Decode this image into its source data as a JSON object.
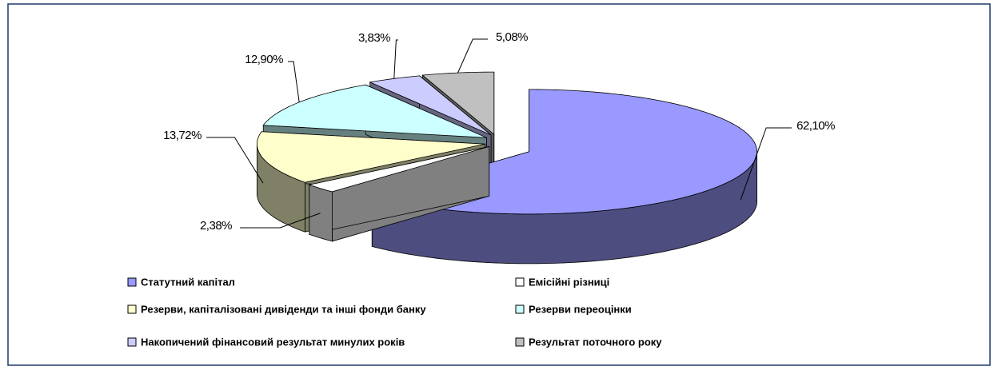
{
  "chart_data": {
    "type": "pie3d",
    "categories": [
      "Статутний капітал",
      "Емісійні різниці",
      "Резерви, капіталізовані дивіденди та інші фонди банку",
      "Резерви переоцінки",
      "Накопичений фінансовий результат минулих років",
      "Результат поточного року"
    ],
    "values": [
      62.1,
      2.38,
      13.72,
      12.9,
      3.83,
      5.08
    ],
    "value_labels": [
      "62,10%",
      "2,38%",
      "13,72%",
      "12,90%",
      "3,83%",
      "5,08%"
    ],
    "colors": [
      "#9999ff",
      "#ffffff",
      "#ffffcc",
      "#ccffff",
      "#ccccff",
      "#c0c0c0"
    ],
    "legend": "bottom"
  }
}
